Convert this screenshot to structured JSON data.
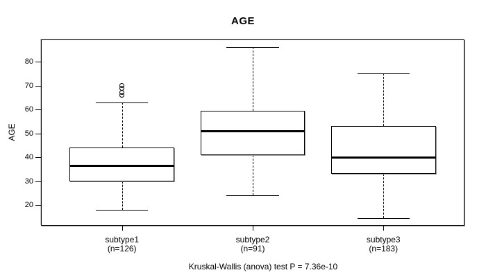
{
  "chart_data": {
    "type": "boxplot",
    "title": "AGE",
    "ylabel": "AGE",
    "xlabel": "",
    "caption": "Kruskal-Wallis (anova) test P = 7.36e-10",
    "yticks": [
      20,
      30,
      40,
      50,
      60,
      70,
      80
    ],
    "ylim": [
      11.3,
      89.3
    ],
    "grid": false,
    "legend": "none",
    "groups": [
      {
        "label": "subtype1",
        "sublabel": "(n=126)",
        "n": 126,
        "whisker_low": 18,
        "q1": 30,
        "median": 36.5,
        "q3": 44,
        "whisker_high": 63,
        "outliers": [
          66,
          67,
          69,
          70
        ]
      },
      {
        "label": "subtype2",
        "sublabel": "(n=91)",
        "n": 91,
        "whisker_low": 24,
        "q1": 41,
        "median": 51,
        "q3": 59.5,
        "whisker_high": 86,
        "outliers": []
      },
      {
        "label": "subtype3",
        "sublabel": "(n=183)",
        "n": 183,
        "whisker_low": 14.5,
        "q1": 33,
        "median": 40,
        "q3": 53,
        "whisker_high": 75,
        "outliers": []
      }
    ],
    "colors": {
      "line": "#000000",
      "box_fill": "#ffffff",
      "background": "#ffffff"
    }
  }
}
